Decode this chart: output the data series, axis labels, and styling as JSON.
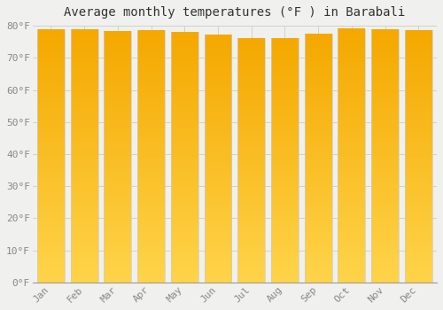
{
  "title": "Average monthly temperatures (°F ) in Barabali",
  "months": [
    "Jan",
    "Feb",
    "Mar",
    "Apr",
    "May",
    "Jun",
    "Jul",
    "Aug",
    "Sep",
    "Oct",
    "Nov",
    "Dec"
  ],
  "values": [
    78.8,
    78.8,
    78.3,
    78.6,
    78.1,
    77.2,
    76.1,
    76.1,
    77.5,
    79.0,
    78.8,
    78.6
  ],
  "ylim": [
    0,
    80
  ],
  "yticks": [
    0,
    10,
    20,
    30,
    40,
    50,
    60,
    70,
    80
  ],
  "ytick_labels": [
    "0°F",
    "10°F",
    "20°F",
    "30°F",
    "40°F",
    "50°F",
    "60°F",
    "70°F",
    "80°F"
  ],
  "bar_color_bottom": "#F5A800",
  "bar_color_top": "#FFD44A",
  "bar_edge_color": "#CCCCCC",
  "background_color": "#F0F0EE",
  "grid_color": "#CCCCCC",
  "title_fontsize": 10,
  "tick_fontsize": 8,
  "tick_color": "#888888",
  "font_family": "monospace"
}
